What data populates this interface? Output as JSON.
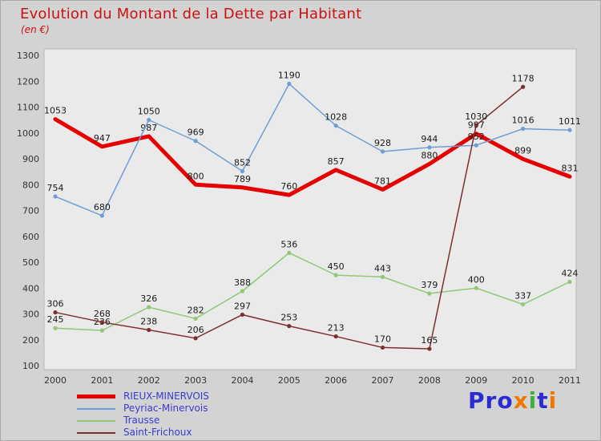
{
  "title": "Evolution du Montant de la Dette par Habitant",
  "subtitle": "(en €)",
  "colors": {
    "page_bg": "#d3d3d3",
    "plot_bg": "#eaeaea",
    "plot_border": "#b8b8b8",
    "title_text": "#cc1111",
    "axis_text": "#333333",
    "point_label_text": "#1a1a1a",
    "legend_text": "#3a3ad0"
  },
  "chart_data": {
    "type": "line",
    "x": [
      2000,
      2001,
      2002,
      2003,
      2004,
      2005,
      2006,
      2007,
      2008,
      2009,
      2010,
      2011
    ],
    "ylim": [
      100,
      1300
    ],
    "ytick_step": 100,
    "grid": false,
    "legend_position": "bottom-left",
    "series": [
      {
        "name": "RIEUX-MINERVOIS",
        "color": "#e60000",
        "line_width": 5,
        "marker": false,
        "values": [
          1053,
          947,
          987,
          800,
          789,
          760,
          857,
          781,
          880,
          997,
          899,
          831
        ]
      },
      {
        "name": "Peyriac-Minervois",
        "color": "#6f9ed6",
        "line_width": 1.5,
        "marker": true,
        "values": [
          754,
          680,
          1050,
          969,
          852,
          1190,
          1028,
          928,
          944,
          952,
          1016,
          1011
        ]
      },
      {
        "name": "Trausse",
        "color": "#90c873",
        "line_width": 1.5,
        "marker": true,
        "values": [
          245,
          236,
          326,
          282,
          388,
          536,
          450,
          443,
          379,
          400,
          337,
          424
        ]
      },
      {
        "name": "Saint-Frichoux",
        "color": "#7d2e2e",
        "line_width": 1.5,
        "marker": true,
        "values": [
          306,
          268,
          238,
          206,
          297,
          253,
          213,
          170,
          165,
          1030,
          1178,
          null
        ]
      }
    ]
  },
  "logo": {
    "letters": [
      {
        "ch": "P",
        "color": "#2b2bd4"
      },
      {
        "ch": "r",
        "color": "#2b2bd4"
      },
      {
        "ch": "o",
        "color": "#2b2bd4"
      },
      {
        "ch": "x",
        "color": "#f07800"
      },
      {
        "ch": "i",
        "color": "#3fae3f"
      },
      {
        "ch": "t",
        "color": "#2b2bd4"
      },
      {
        "ch": "i",
        "color": "#f07800"
      }
    ]
  }
}
